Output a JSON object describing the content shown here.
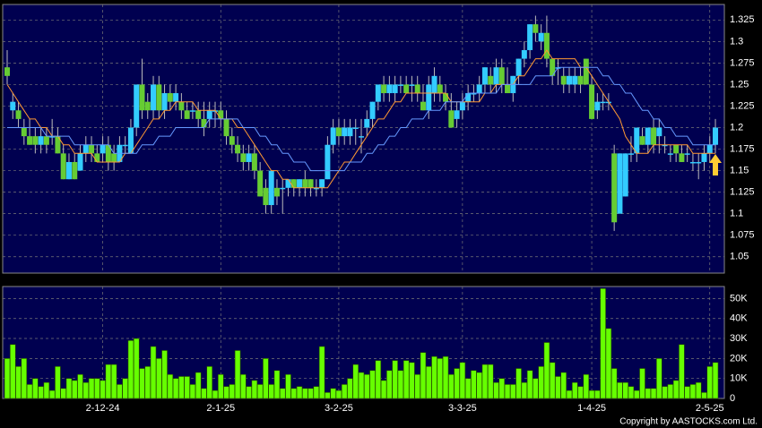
{
  "chart_data": [
    {
      "type": "candlestick",
      "open": [
        1.27,
        1.22,
        1.22,
        1.2,
        1.19,
        1.19,
        1.18,
        1.19,
        1.19,
        1.19,
        1.17,
        1.14,
        1.16,
        1.15,
        1.17,
        1.18,
        1.17,
        1.17,
        1.18,
        1.17,
        1.16,
        1.18,
        1.17,
        1.2,
        1.25,
        1.23,
        1.22,
        1.25,
        1.22,
        1.24,
        1.23,
        1.23,
        1.22,
        1.22,
        1.22,
        1.21,
        1.21,
        1.22,
        1.22,
        1.21,
        1.19,
        1.18,
        1.17,
        1.16,
        1.17,
        1.15,
        1.13,
        1.11,
        1.13,
        1.13,
        1.13,
        1.14,
        1.13,
        1.14,
        1.14,
        1.13,
        1.13,
        1.14,
        1.18,
        1.2,
        1.19,
        1.19,
        1.2,
        1.19,
        1.2,
        1.21,
        1.23,
        1.25,
        1.24,
        1.24,
        1.25,
        1.25,
        1.25,
        1.25,
        1.23,
        1.22,
        1.24,
        1.25,
        1.24,
        1.22,
        1.21,
        1.22,
        1.23,
        1.24,
        1.24,
        1.25,
        1.26,
        1.25,
        1.27,
        1.25,
        1.24,
        1.26,
        1.28,
        1.29,
        1.32,
        1.3,
        1.31,
        1.28,
        1.27,
        1.26,
        1.25,
        1.25,
        1.26,
        1.28,
        1.25,
        1.22,
        1.23,
        1.23,
        1.17,
        1.1,
        1.12,
        1.17,
        1.17,
        1.19,
        1.18,
        1.2,
        1.19,
        1.18,
        1.17,
        1.18,
        1.17,
        1.17,
        1.16,
        1.16,
        1.16,
        1.17,
        1.18
      ],
      "high": [
        1.29,
        1.24,
        1.23,
        1.21,
        1.21,
        1.2,
        1.2,
        1.2,
        1.21,
        1.2,
        1.18,
        1.17,
        1.17,
        1.18,
        1.19,
        1.19,
        1.18,
        1.19,
        1.19,
        1.18,
        1.19,
        1.19,
        1.21,
        1.25,
        1.28,
        1.24,
        1.26,
        1.26,
        1.25,
        1.25,
        1.25,
        1.24,
        1.23,
        1.23,
        1.23,
        1.23,
        1.23,
        1.23,
        1.23,
        1.22,
        1.2,
        1.19,
        1.18,
        1.18,
        1.18,
        1.16,
        1.14,
        1.15,
        1.14,
        1.14,
        1.14,
        1.14,
        1.14,
        1.15,
        1.14,
        1.14,
        1.14,
        1.19,
        1.21,
        1.21,
        1.21,
        1.21,
        1.21,
        1.21,
        1.22,
        1.23,
        1.25,
        1.26,
        1.26,
        1.26,
        1.26,
        1.26,
        1.26,
        1.26,
        1.25,
        1.26,
        1.27,
        1.26,
        1.25,
        1.24,
        1.23,
        1.24,
        1.25,
        1.25,
        1.26,
        1.27,
        1.27,
        1.28,
        1.28,
        1.27,
        1.26,
        1.28,
        1.3,
        1.32,
        1.33,
        1.32,
        1.33,
        1.28,
        1.28,
        1.27,
        1.27,
        1.27,
        1.27,
        1.28,
        1.26,
        1.24,
        1.24,
        1.24,
        1.18,
        1.17,
        1.17,
        1.19,
        1.2,
        1.2,
        1.2,
        1.21,
        1.21,
        1.19,
        1.18,
        1.18,
        1.18,
        1.18,
        1.17,
        1.17,
        1.18,
        1.19,
        1.21
      ],
      "low": [
        1.25,
        1.21,
        1.2,
        1.18,
        1.18,
        1.17,
        1.17,
        1.17,
        1.18,
        1.17,
        1.14,
        1.14,
        1.14,
        1.15,
        1.16,
        1.16,
        1.16,
        1.16,
        1.15,
        1.15,
        1.16,
        1.17,
        1.17,
        1.19,
        1.21,
        1.21,
        1.21,
        1.21,
        1.21,
        1.22,
        1.22,
        1.21,
        1.21,
        1.21,
        1.2,
        1.19,
        1.2,
        1.2,
        1.2,
        1.18,
        1.17,
        1.16,
        1.15,
        1.15,
        1.14,
        1.12,
        1.1,
        1.1,
        1.11,
        1.1,
        1.12,
        1.12,
        1.12,
        1.12,
        1.12,
        1.12,
        1.12,
        1.14,
        1.17,
        1.18,
        1.18,
        1.18,
        1.18,
        1.17,
        1.19,
        1.2,
        1.22,
        1.23,
        1.23,
        1.23,
        1.24,
        1.24,
        1.23,
        1.23,
        1.22,
        1.21,
        1.23,
        1.23,
        1.22,
        1.2,
        1.2,
        1.21,
        1.22,
        1.23,
        1.23,
        1.24,
        1.24,
        1.24,
        1.24,
        1.24,
        1.23,
        1.25,
        1.27,
        1.28,
        1.3,
        1.29,
        1.27,
        1.25,
        1.25,
        1.24,
        1.24,
        1.24,
        1.24,
        1.25,
        1.21,
        1.21,
        1.22,
        1.22,
        1.08,
        1.1,
        1.12,
        1.16,
        1.16,
        1.18,
        1.17,
        1.17,
        1.17,
        1.17,
        1.16,
        1.16,
        1.16,
        1.16,
        1.15,
        1.14,
        1.15,
        1.16,
        1.17
      ],
      "close": [
        1.26,
        1.23,
        1.21,
        1.19,
        1.18,
        1.18,
        1.19,
        1.18,
        1.19,
        1.17,
        1.14,
        1.16,
        1.14,
        1.17,
        1.18,
        1.17,
        1.16,
        1.18,
        1.16,
        1.16,
        1.18,
        1.18,
        1.2,
        1.25,
        1.22,
        1.22,
        1.25,
        1.22,
        1.24,
        1.23,
        1.24,
        1.22,
        1.21,
        1.22,
        1.21,
        1.2,
        1.22,
        1.22,
        1.21,
        1.19,
        1.18,
        1.17,
        1.16,
        1.17,
        1.15,
        1.12,
        1.11,
        1.15,
        1.12,
        1.13,
        1.14,
        1.13,
        1.14,
        1.13,
        1.13,
        1.13,
        1.14,
        1.18,
        1.2,
        1.19,
        1.2,
        1.2,
        1.2,
        1.19,
        1.21,
        1.23,
        1.25,
        1.24,
        1.25,
        1.25,
        1.25,
        1.24,
        1.25,
        1.24,
        1.22,
        1.25,
        1.26,
        1.24,
        1.23,
        1.2,
        1.22,
        1.23,
        1.24,
        1.24,
        1.25,
        1.27,
        1.25,
        1.27,
        1.25,
        1.24,
        1.26,
        1.28,
        1.29,
        1.32,
        1.31,
        1.31,
        1.28,
        1.26,
        1.27,
        1.25,
        1.26,
        1.26,
        1.25,
        1.25,
        1.21,
        1.23,
        1.23,
        1.23,
        1.09,
        1.17,
        1.17,
        1.17,
        1.2,
        1.18,
        1.2,
        1.18,
        1.2,
        1.18,
        1.17,
        1.17,
        1.16,
        1.17,
        1.16,
        1.16,
        1.17,
        1.18,
        1.2
      ],
      "up_color": "#33ccff",
      "down_color": "#66cc33",
      "series": [
        {
          "color": "#ff9933",
          "values": [
            1.25,
            1.24,
            1.23,
            1.22,
            1.21,
            1.21,
            1.2,
            1.2,
            1.19,
            1.19,
            1.18,
            1.18,
            1.17,
            1.17,
            1.17,
            1.17,
            1.16,
            1.16,
            1.16,
            1.16,
            1.16,
            1.17,
            1.17,
            1.18,
            1.19,
            1.2,
            1.21,
            1.21,
            1.22,
            1.22,
            1.23,
            1.23,
            1.23,
            1.23,
            1.22,
            1.22,
            1.22,
            1.22,
            1.21,
            1.21,
            1.21,
            1.2,
            1.2,
            1.19,
            1.18,
            1.17,
            1.16,
            1.15,
            1.15,
            1.14,
            1.14,
            1.13,
            1.13,
            1.13,
            1.13,
            1.13,
            1.13,
            1.13,
            1.14,
            1.15,
            1.16,
            1.16,
            1.17,
            1.18,
            1.19,
            1.2,
            1.21,
            1.21,
            1.22,
            1.23,
            1.23,
            1.24,
            1.24,
            1.24,
            1.24,
            1.24,
            1.24,
            1.24,
            1.24,
            1.23,
            1.23,
            1.23,
            1.23,
            1.23,
            1.23,
            1.24,
            1.24,
            1.25,
            1.25,
            1.25,
            1.25,
            1.26,
            1.26,
            1.27,
            1.28,
            1.28,
            1.29,
            1.28,
            1.28,
            1.28,
            1.28,
            1.28,
            1.27,
            1.27,
            1.26,
            1.25,
            1.24,
            1.23,
            1.22,
            1.21,
            1.19,
            1.18,
            1.17,
            1.17,
            1.17,
            1.18,
            1.18,
            1.18,
            1.18,
            1.18,
            1.18,
            1.18,
            1.17,
            1.17,
            1.17,
            1.17,
            1.17
          ]
        },
        {
          "color": "#6699ff",
          "values": [
            1.2,
            1.2,
            1.2,
            1.2,
            1.2,
            1.2,
            1.2,
            1.19,
            1.19,
            1.19,
            1.19,
            1.19,
            1.18,
            1.18,
            1.18,
            1.18,
            1.18,
            1.18,
            1.18,
            1.17,
            1.17,
            1.17,
            1.17,
            1.17,
            1.18,
            1.18,
            1.18,
            1.19,
            1.19,
            1.19,
            1.2,
            1.2,
            1.2,
            1.2,
            1.2,
            1.2,
            1.21,
            1.21,
            1.21,
            1.21,
            1.21,
            1.21,
            1.2,
            1.2,
            1.2,
            1.19,
            1.19,
            1.18,
            1.18,
            1.17,
            1.17,
            1.16,
            1.16,
            1.16,
            1.15,
            1.15,
            1.15,
            1.15,
            1.15,
            1.15,
            1.15,
            1.16,
            1.16,
            1.16,
            1.17,
            1.17,
            1.18,
            1.18,
            1.19,
            1.19,
            1.2,
            1.2,
            1.21,
            1.21,
            1.21,
            1.22,
            1.22,
            1.22,
            1.23,
            1.23,
            1.23,
            1.23,
            1.24,
            1.24,
            1.24,
            1.24,
            1.24,
            1.24,
            1.25,
            1.25,
            1.25,
            1.25,
            1.25,
            1.25,
            1.26,
            1.26,
            1.26,
            1.26,
            1.27,
            1.27,
            1.27,
            1.27,
            1.27,
            1.27,
            1.27,
            1.27,
            1.26,
            1.26,
            1.25,
            1.25,
            1.24,
            1.24,
            1.23,
            1.22,
            1.22,
            1.21,
            1.21,
            1.2,
            1.2,
            1.19,
            1.19,
            1.19,
            1.18,
            1.18,
            1.18,
            1.18,
            1.18
          ]
        }
      ],
      "ylim": [
        1.031,
        1.343
      ],
      "yticks": [
        1.05,
        1.075,
        1.1,
        1.125,
        1.15,
        1.175,
        1.2,
        1.225,
        1.25,
        1.275,
        1.3,
        1.325
      ],
      "grid": true
    },
    {
      "type": "bar",
      "categories": [
        null,
        null,
        null,
        null,
        null,
        null,
        null,
        null,
        null,
        null,
        null,
        null,
        null,
        null,
        null,
        null,
        null,
        "2-12-24",
        null,
        null,
        null,
        null,
        null,
        null,
        null,
        null,
        null,
        null,
        null,
        null,
        null,
        null,
        null,
        null,
        null,
        null,
        null,
        null,
        "2-1-25",
        null,
        null,
        null,
        null,
        null,
        null,
        null,
        null,
        null,
        null,
        null,
        null,
        null,
        null,
        null,
        null,
        null,
        null,
        null,
        null,
        "3-2-25",
        null,
        null,
        null,
        null,
        null,
        null,
        null,
        null,
        null,
        null,
        null,
        null,
        null,
        null,
        null,
        null,
        null,
        null,
        null,
        null,
        null,
        "3-3-25",
        null,
        null,
        null,
        null,
        null,
        null,
        null,
        null,
        null,
        null,
        null,
        null,
        null,
        null,
        null,
        null,
        null,
        null,
        null,
        null,
        null,
        null,
        "1-4-25",
        null,
        null,
        null,
        null,
        null,
        null,
        null,
        null,
        null,
        null,
        null,
        null,
        null,
        null,
        null,
        null,
        null,
        null,
        null,
        null,
        "2-5-25",
        null
      ],
      "values": [
        20000,
        27000,
        16000,
        20000,
        7000,
        10000,
        6000,
        8000,
        4000,
        16000,
        5000,
        10000,
        9000,
        12000,
        8000,
        10000,
        10000,
        9000,
        17000,
        17000,
        7000,
        10000,
        29000,
        30000,
        15000,
        16000,
        26000,
        20000,
        24000,
        12000,
        10000,
        11000,
        11000,
        7000,
        13000,
        5000,
        16000,
        4000,
        12000,
        6000,
        7000,
        24000,
        12000,
        6000,
        9000,
        7000,
        20000,
        7000,
        14000,
        5000,
        12000,
        5000,
        6000,
        5000,
        5000,
        6000,
        26000,
        3000,
        5000,
        4000,
        7000,
        10000,
        17000,
        13000,
        12000,
        14000,
        19000,
        9000,
        14000,
        19000,
        14000,
        19000,
        18000,
        12000,
        23000,
        16000,
        21000,
        20000,
        21000,
        12000,
        15000,
        18000,
        10000,
        14000,
        13000,
        17000,
        17000,
        8000,
        10000,
        7000,
        7000,
        15000,
        8000,
        14000,
        10000,
        16000,
        28000,
        18000,
        11000,
        13000,
        4000,
        8000,
        6000,
        12000,
        4000,
        4000,
        55000,
        35000,
        15000,
        8000,
        8000,
        6000,
        4000,
        15000,
        5000,
        5000,
        20000,
        6000,
        7000,
        9000,
        27000,
        6000,
        7000,
        8000,
        3000,
        16000,
        18000
      ],
      "color": "#66ff00",
      "ylim": [
        0,
        56000
      ],
      "yticks": [
        0,
        {
          "value": 10000,
          "label": "10K"
        },
        {
          "value": 20000,
          "label": "20K"
        },
        {
          "value": 30000,
          "label": "30K"
        },
        {
          "value": 40000,
          "label": "40K"
        },
        {
          "value": 50000,
          "label": "50K"
        }
      ],
      "grid": true,
      "copyright": "Copyright by AASTOCKS.com Ltd."
    }
  ]
}
